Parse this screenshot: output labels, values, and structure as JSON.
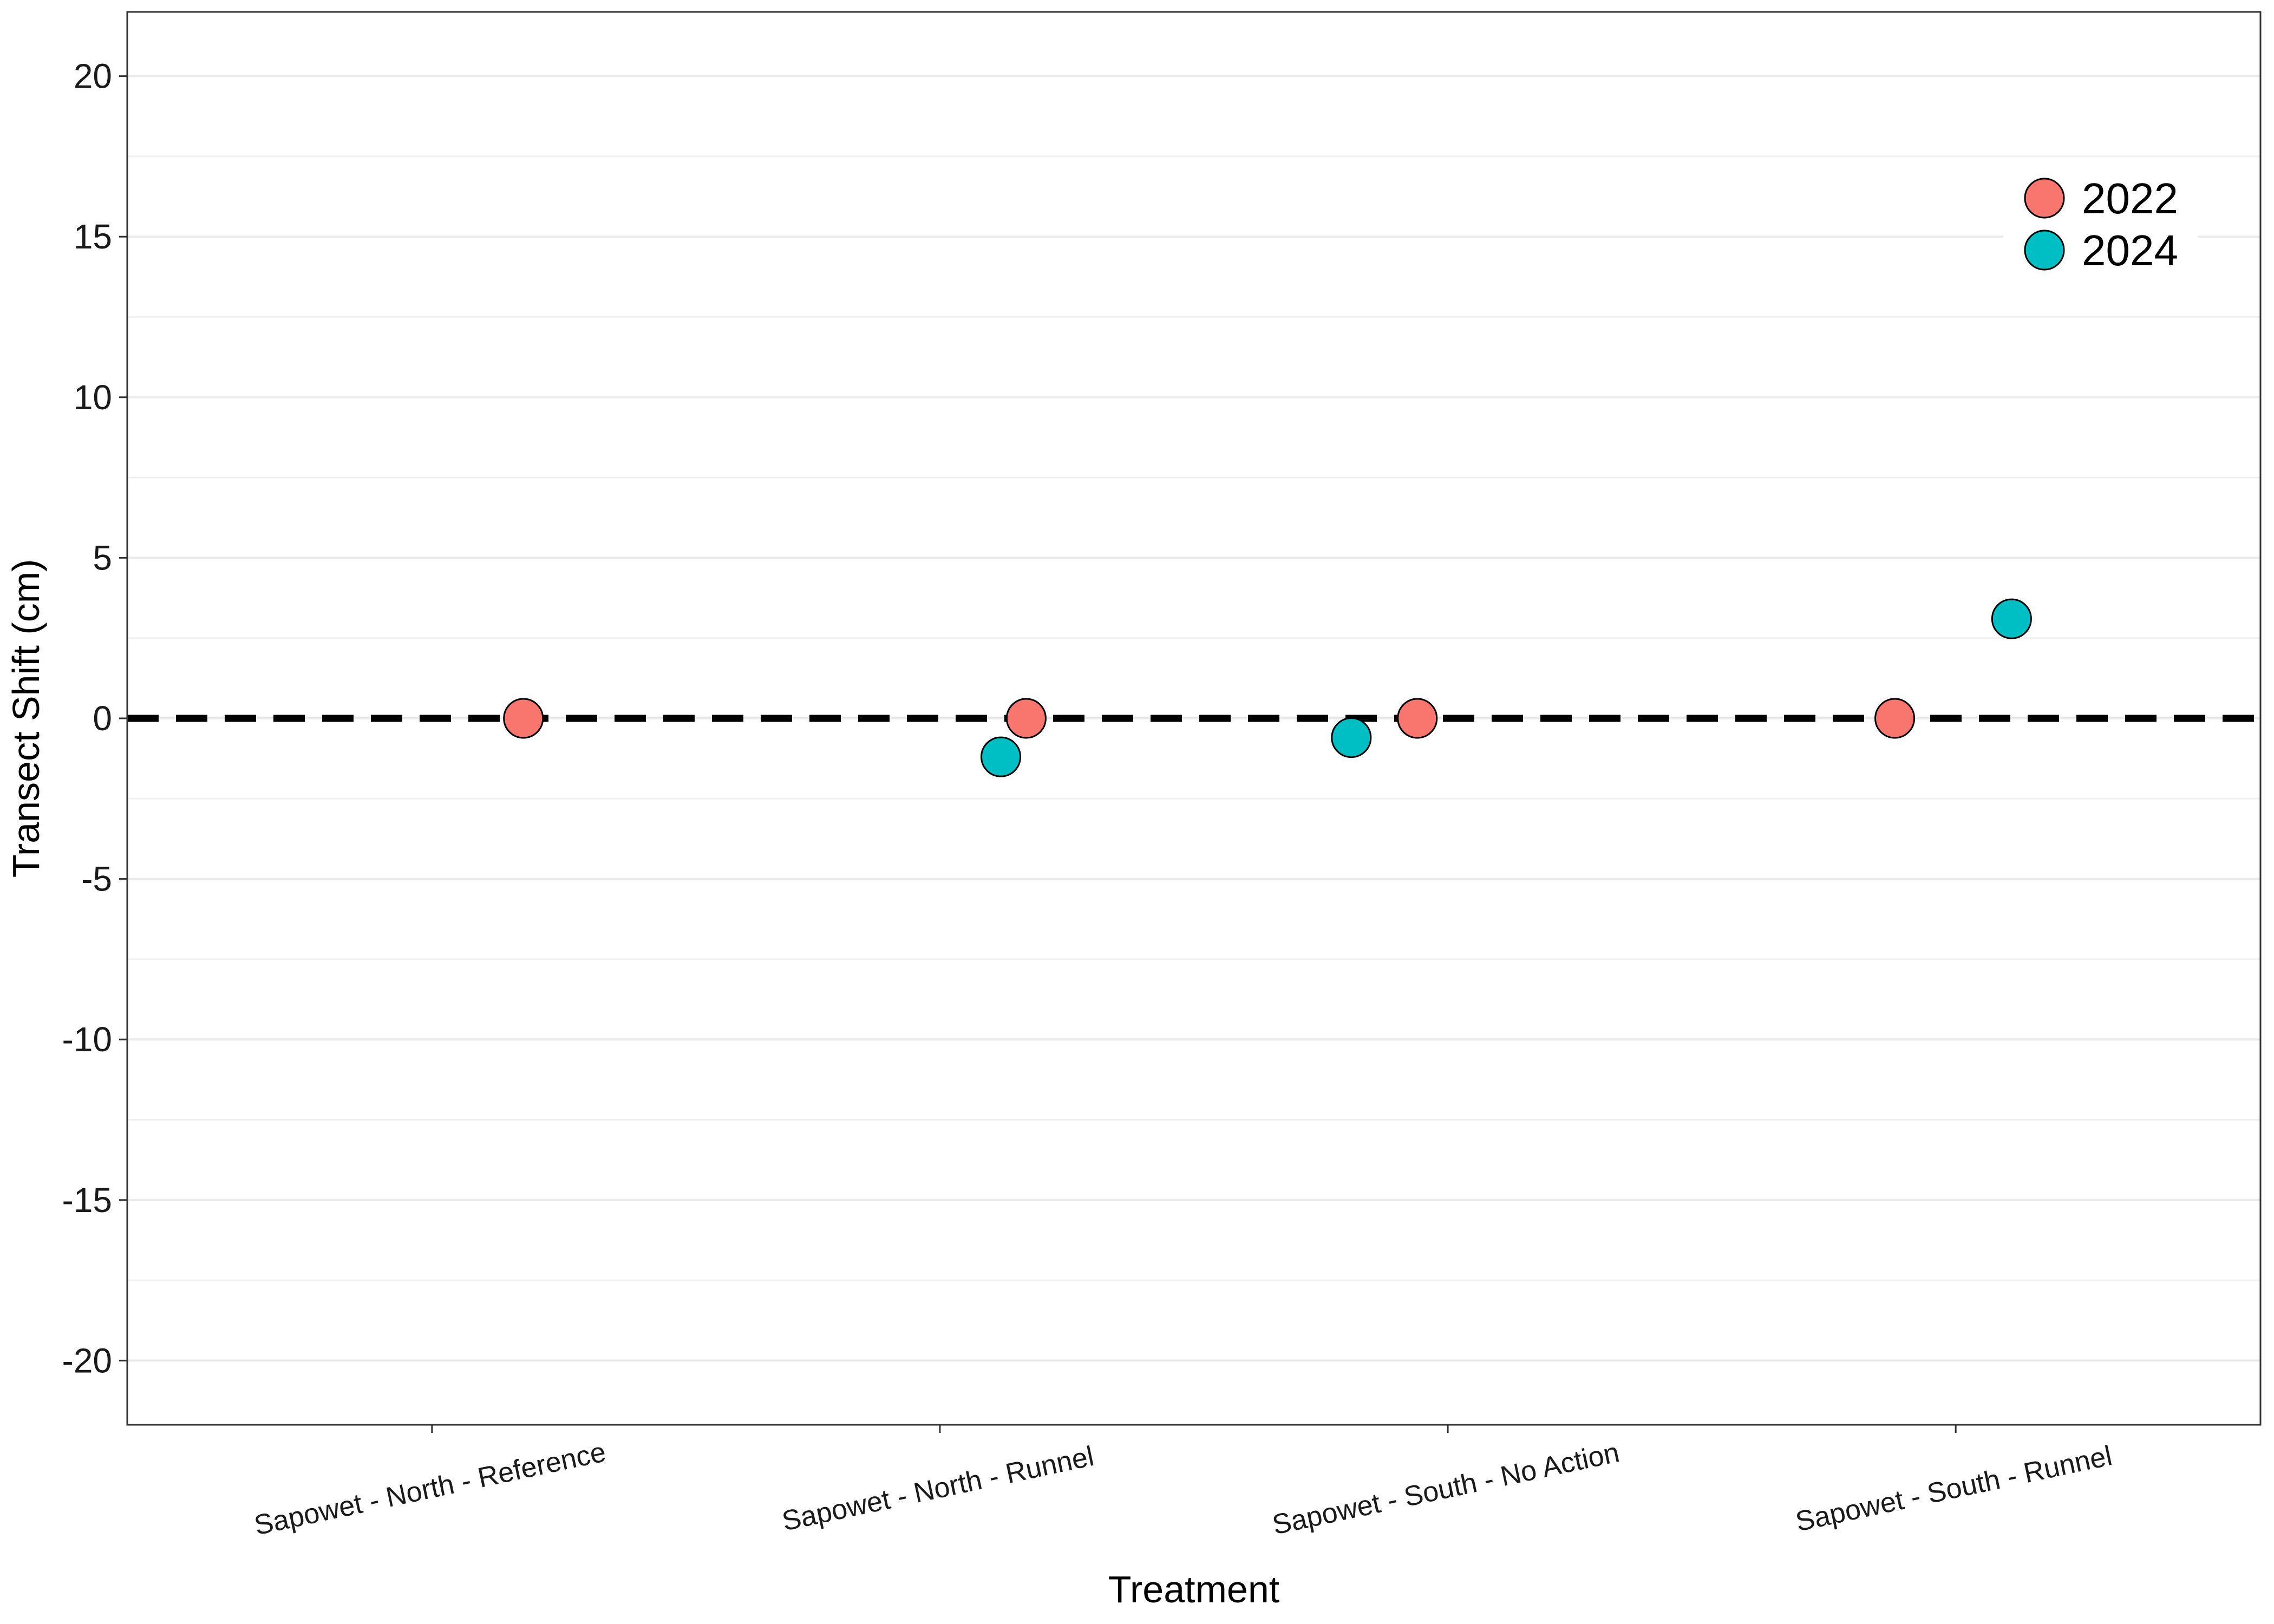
{
  "chart_data": {
    "type": "scatter",
    "title": "",
    "xlabel": "Treatment",
    "ylabel": "Transect Shift (cm)",
    "ylim": [
      -22,
      22
    ],
    "y_ticks": [
      -20,
      -15,
      -10,
      -5,
      0,
      5,
      10,
      15,
      20
    ],
    "y_tick_labels": [
      "-20",
      "-15",
      "-10",
      "-5",
      "0",
      "5",
      "10",
      "15",
      "20"
    ],
    "categories": [
      "Sapowet - North - Reference",
      "Sapowet - North - Runnel",
      "Sapowet - South - No Action",
      "Sapowet - South - Runnel"
    ],
    "grid": true,
    "reference_line": {
      "y": 0,
      "style": "dashed"
    },
    "legend": {
      "position": "top-right"
    },
    "series": [
      {
        "name": "2022",
        "color": "#F8766D",
        "points": [
          {
            "category": "Sapowet - North - Reference",
            "y": 0.0,
            "jitter": 0.18
          },
          {
            "category": "Sapowet - North - Runnel",
            "y": 0.0,
            "jitter": 0.17
          },
          {
            "category": "Sapowet - South - No Action",
            "y": 0.0,
            "jitter": -0.06
          },
          {
            "category": "Sapowet - South - Runnel",
            "y": 0.0,
            "jitter": -0.12
          }
        ]
      },
      {
        "name": "2024",
        "color": "#00BFC4",
        "points": [
          {
            "category": "Sapowet - North - Runnel",
            "y": -1.2,
            "jitter": 0.12
          },
          {
            "category": "Sapowet - South - No Action",
            "y": -0.6,
            "jitter": -0.19
          },
          {
            "category": "Sapowet - South - Runnel",
            "y": 3.1,
            "jitter": 0.11
          }
        ]
      }
    ]
  }
}
